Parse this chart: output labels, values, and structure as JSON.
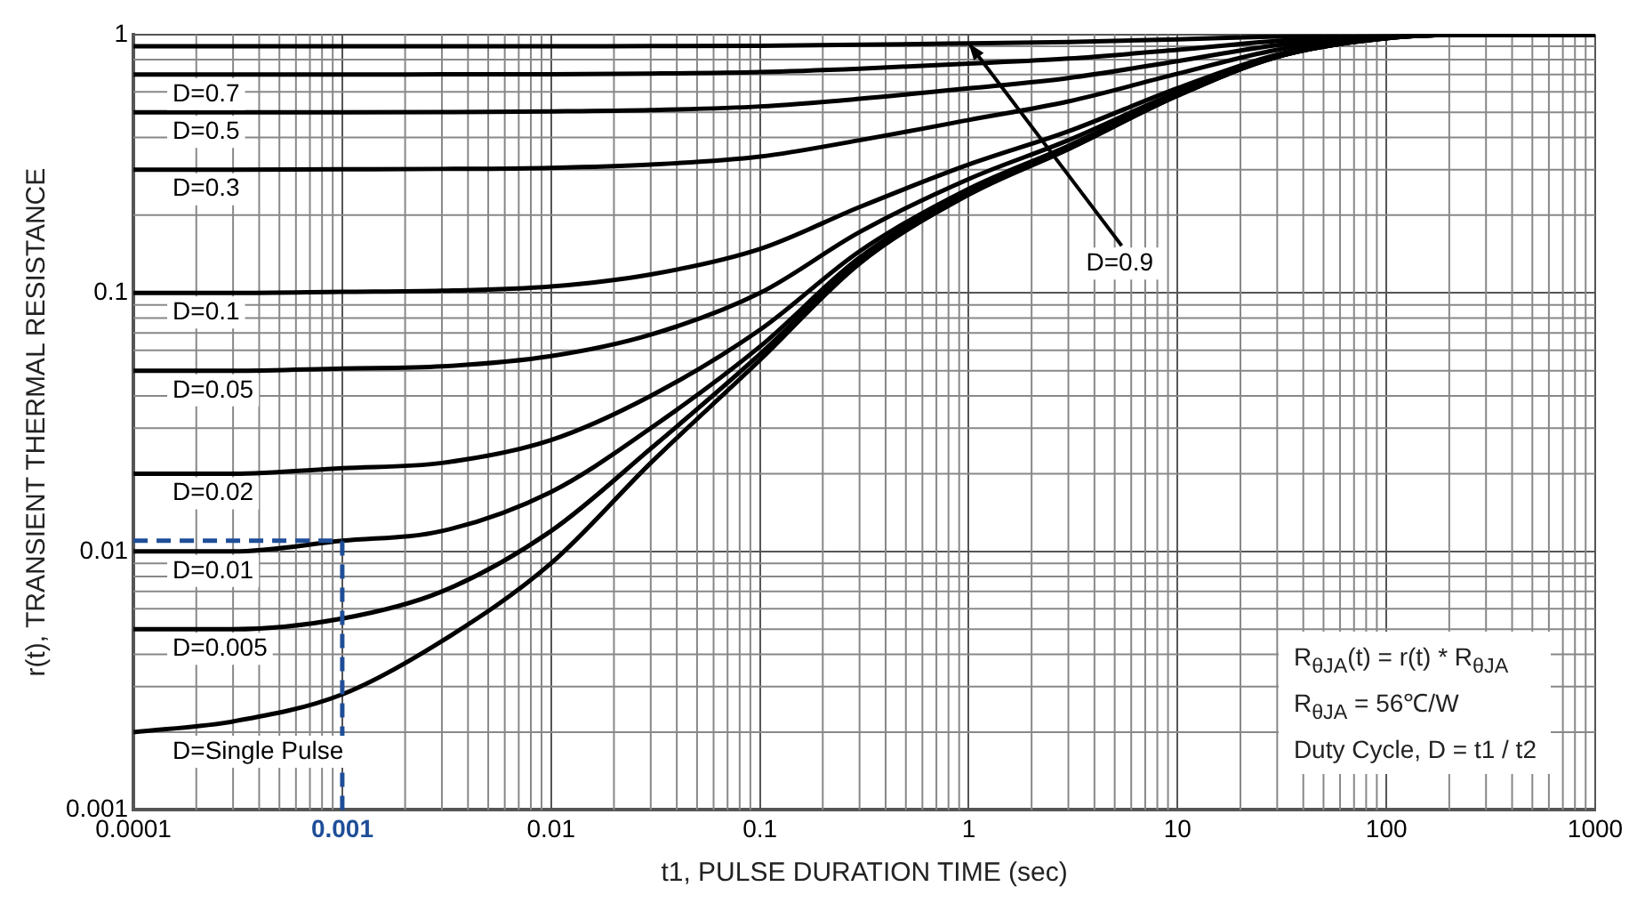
{
  "chart_data": {
    "type": "line",
    "xlabel": "t1, PULSE DURATION TIME (sec)",
    "ylabel": "r(t), TRANSIENT THERMAL RESISTANCE",
    "log": "xy",
    "grid": true,
    "marker": "none",
    "line_style": "solid",
    "xlim": [
      0.0001,
      1000
    ],
    "xticks": [
      0.0001,
      0.001,
      0.01,
      0.1,
      1,
      10,
      100,
      1000
    ],
    "ylim": [
      0.001,
      1
    ],
    "yticks": [
      0.001,
      0.01,
      0.1,
      1
    ],
    "x": [
      0.0001,
      0.0003,
      0.001,
      0.003,
      0.01,
      0.03,
      0.1,
      0.3,
      1,
      3,
      10,
      30,
      100,
      300,
      1000
    ],
    "series": [
      {
        "name": "D=0.9",
        "color": "#000000",
        "values": [
          0.9,
          0.9,
          0.9,
          0.9,
          0.901,
          0.902,
          0.905,
          0.913,
          0.924,
          0.936,
          0.958,
          0.982,
          0.997,
          1,
          1
        ]
      },
      {
        "name": "D=0.7",
        "color": "#000000",
        "values": [
          0.7,
          0.7,
          0.7,
          0.701,
          0.702,
          0.706,
          0.716,
          0.738,
          0.771,
          0.807,
          0.873,
          0.945,
          0.99,
          1,
          1
        ]
      },
      {
        "name": "D=0.5",
        "color": "#000000",
        "values": [
          0.5,
          0.5,
          0.5,
          0.501,
          0.504,
          0.51,
          0.527,
          0.564,
          0.619,
          0.679,
          0.789,
          0.909,
          0.984,
          1,
          1
        ]
      },
      {
        "name": "D=0.3",
        "color": "#000000",
        "values": [
          0.3,
          0.3,
          0.301,
          0.302,
          0.305,
          0.314,
          0.337,
          0.39,
          0.467,
          0.551,
          0.705,
          0.873,
          0.978,
          1,
          1
        ]
      },
      {
        "name": "D=0.1",
        "color": "#000000",
        "values": [
          0.1,
          0.1,
          0.101,
          0.102,
          0.106,
          0.118,
          0.148,
          0.215,
          0.314,
          0.422,
          0.62,
          0.836,
          0.971,
          1,
          1
        ]
      },
      {
        "name": "D=0.05",
        "color": "#000000",
        "values": [
          0.05,
          0.05,
          0.051,
          0.052,
          0.057,
          0.069,
          0.1,
          0.172,
          0.276,
          0.39,
          0.599,
          0.827,
          0.97,
          1,
          1
        ]
      },
      {
        "name": "D=0.02",
        "color": "#000000",
        "values": [
          0.02,
          0.02,
          0.021,
          0.022,
          0.027,
          0.04,
          0.072,
          0.145,
          0.253,
          0.371,
          0.586,
          0.822,
          0.969,
          1,
          1
        ]
      },
      {
        "name": "D=0.01",
        "color": "#000000",
        "values": [
          0.01,
          0.01,
          0.011,
          0.012,
          0.017,
          0.03,
          0.062,
          0.137,
          0.246,
          0.364,
          0.582,
          0.82,
          0.968,
          1,
          1
        ]
      },
      {
        "name": "D=0.005",
        "color": "#000000",
        "values": [
          0.005,
          0.005,
          0.0055,
          0.007,
          0.012,
          0.025,
          0.058,
          0.132,
          0.242,
          0.361,
          0.58,
          0.819,
          0.968,
          1,
          1
        ]
      },
      {
        "name": "D=Single Pulse",
        "color": "#000000",
        "values": [
          0.002,
          0.0022,
          0.0028,
          0.0045,
          0.009,
          0.022,
          0.055,
          0.13,
          0.24,
          0.36,
          0.58,
          0.82,
          0.97,
          1,
          1
        ]
      }
    ],
    "ref_lines": [
      {
        "axis": "y",
        "value": 0.011,
        "color": "#1f4e99",
        "line_style": "dashed"
      },
      {
        "axis": "x",
        "value": 0.001,
        "color": "#1f4e99",
        "line_style": "dashed"
      }
    ],
    "annotations": [
      "R$_{θJA}$(t) = r(t) * R$_{θJA}$",
      "R$_{θJA}$ = 56℃/W",
      "Duty Cycle, D = t1 / t2"
    ]
  }
}
